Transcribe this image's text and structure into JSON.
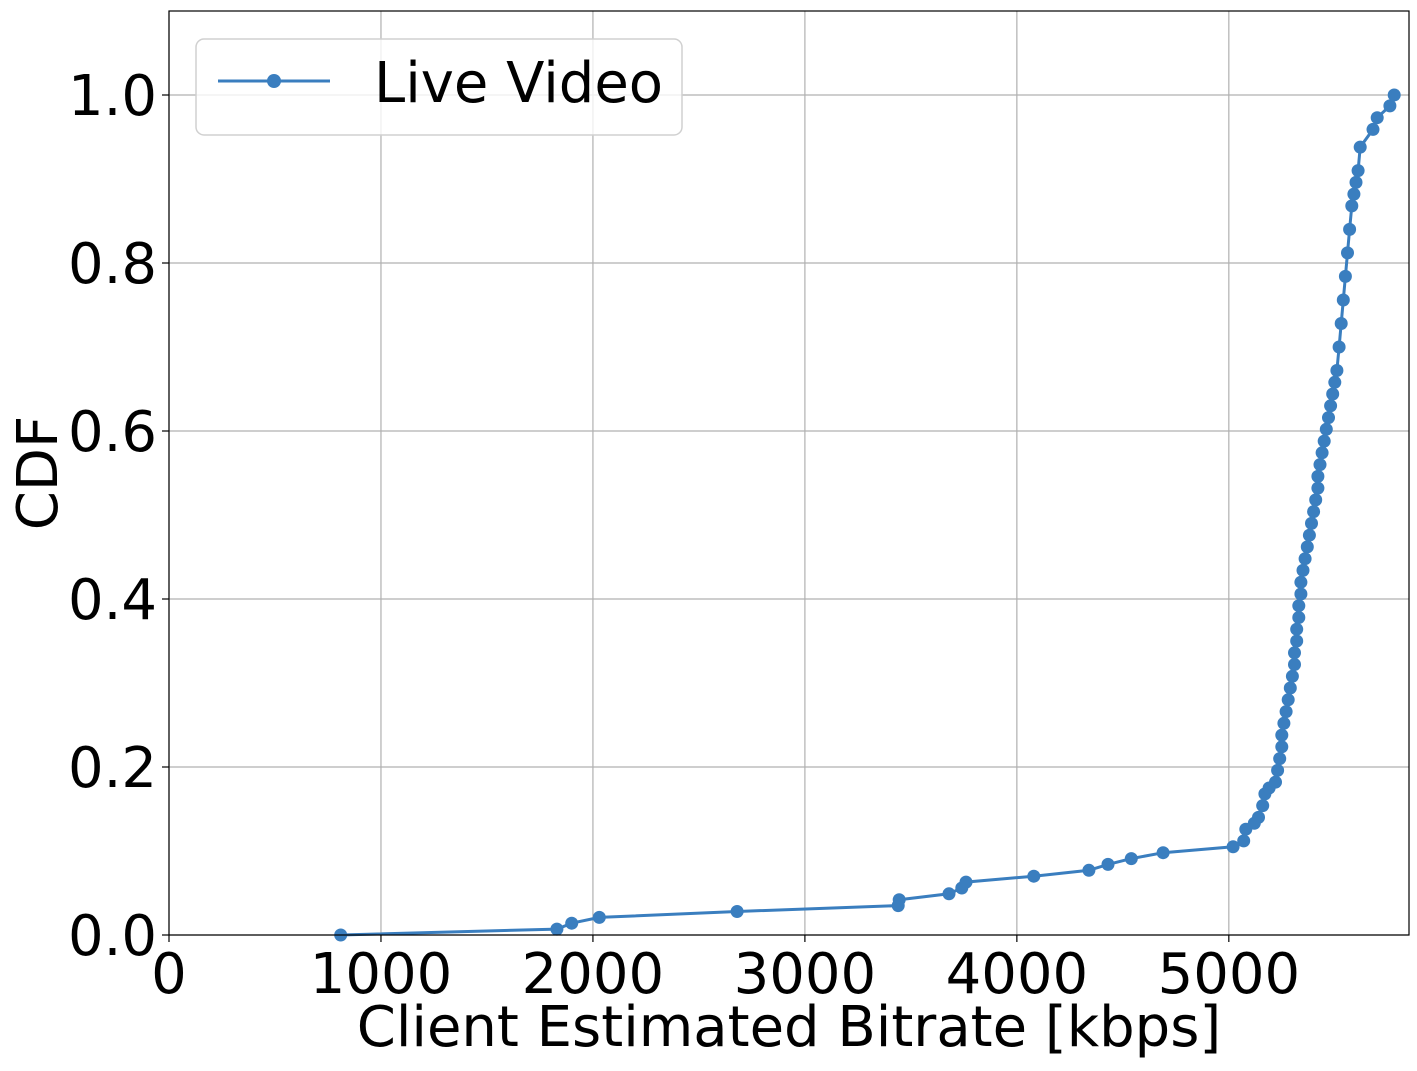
{
  "chart_data": {
    "type": "line",
    "title": "",
    "xlabel": "Client Estimated Bitrate [kbps]",
    "ylabel": "CDF",
    "xlim": [
      0,
      5850
    ],
    "ylim": [
      0,
      1.1
    ],
    "xticks": [
      0,
      1000,
      2000,
      3000,
      4000,
      5000
    ],
    "xtick_labels": [
      "0",
      "1000",
      "2000",
      "3000",
      "4000",
      "5000"
    ],
    "yticks": [
      0.0,
      0.2,
      0.4,
      0.6,
      0.8,
      1.0
    ],
    "ytick_labels": [
      "0.0",
      "0.2",
      "0.4",
      "0.6",
      "0.8",
      "1.0"
    ],
    "grid": true,
    "legend_position": "top-left",
    "series": [
      {
        "name": "Live Video",
        "color": "#3a7ebf",
        "marker": "circle",
        "x": [
          810,
          1830,
          1900,
          2030,
          2680,
          3440,
          3445,
          3680,
          3740,
          3760,
          4080,
          4340,
          4430,
          4540,
          4690,
          5020,
          5070,
          5080,
          5120,
          5140,
          5160,
          5170,
          5190,
          5220,
          5230,
          5240,
          5250,
          5250,
          5260,
          5270,
          5280,
          5290,
          5300,
          5310,
          5310,
          5320,
          5320,
          5330,
          5330,
          5340,
          5340,
          5350,
          5360,
          5370,
          5380,
          5390,
          5400,
          5410,
          5420,
          5420,
          5430,
          5440,
          5450,
          5460,
          5470,
          5480,
          5490,
          5500,
          5510,
          5520,
          5530,
          5540,
          5550,
          5560,
          5570,
          5580,
          5590,
          5600,
          5610,
          5620,
          5680,
          5700,
          5760,
          5780
        ],
        "y": [
          0.0,
          0.007,
          0.014,
          0.021,
          0.028,
          0.035,
          0.042,
          0.049,
          0.056,
          0.063,
          0.07,
          0.077,
          0.084,
          0.091,
          0.098,
          0.105,
          0.112,
          0.126,
          0.133,
          0.14,
          0.154,
          0.168,
          0.175,
          0.182,
          0.196,
          0.21,
          0.224,
          0.238,
          0.252,
          0.266,
          0.28,
          0.294,
          0.308,
          0.322,
          0.336,
          0.35,
          0.364,
          0.378,
          0.392,
          0.406,
          0.42,
          0.434,
          0.448,
          0.462,
          0.476,
          0.49,
          0.504,
          0.518,
          0.532,
          0.546,
          0.56,
          0.574,
          0.588,
          0.602,
          0.616,
          0.63,
          0.644,
          0.658,
          0.672,
          0.7,
          0.728,
          0.756,
          0.784,
          0.812,
          0.84,
          0.868,
          0.882,
          0.896,
          0.91,
          0.938,
          0.959,
          0.973,
          0.987,
          1.0
        ]
      }
    ]
  }
}
